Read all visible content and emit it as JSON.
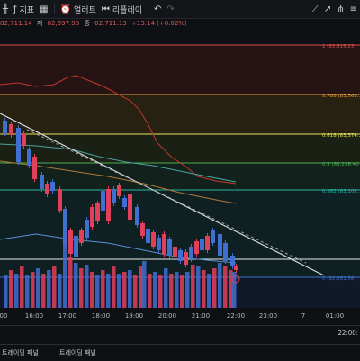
{
  "toolbar": {
    "chart_label": "지표",
    "alert_label": "얼러트",
    "replay_label": "리플레이"
  },
  "ohlc": {
    "vals": [
      "82,711.14",
      "저",
      "82,697.99",
      "종",
      "82,711.13",
      "+13.14 (+0.02%)"
    ]
  },
  "fib_levels": [
    {
      "ratio": 1,
      "label": "1 (83,815.23)",
      "color": "#d94c4c",
      "band": "#2a1414"
    },
    {
      "ratio": 0.786,
      "label": "0.786 (83,568...",
      "color": "#f0a13a",
      "band": "#2b2412"
    },
    {
      "ratio": 0.618,
      "label": "0.618 (83,374...",
      "color": "#e5e35a",
      "band": "#1c2414"
    },
    {
      "ratio": 0.5,
      "label": "0.5 (83,238.40",
      "color": "#4caf50",
      "band": "#13251c"
    },
    {
      "ratio": 0.382,
      "label": "0.382 (83,102...",
      "color": "#2bb3a6",
      "band": "#0f2326"
    },
    {
      "ratio": 0,
      "label": "0 (82,661.56)",
      "color": "#3b6fc8",
      "band": "#121a2e"
    }
  ],
  "colors": {
    "up": "#3f6fd1",
    "down": "#e0405a",
    "trend": "#d8dbe0"
  },
  "time_axis": [
    "00",
    "16:00",
    "17:00",
    "18:00",
    "19:00",
    "20:00",
    "21:00",
    "22:00",
    "23:00",
    "7",
    "01:00"
  ],
  "current_time": "22:00:",
  "panel_tabs": [
    "트레이딩 패널",
    "트레이딩 패널"
  ]
}
